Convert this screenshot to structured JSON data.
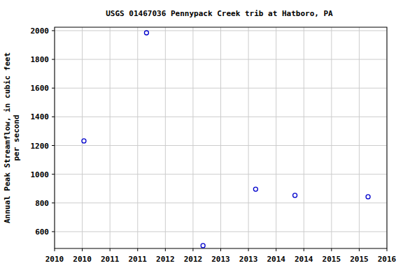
{
  "chart_data": {
    "type": "scatter",
    "title": "USGS 01467036 Pennypack Creek trib at Hatboro, PA",
    "ylabel": [
      "Annual Peak Streamflow, in cubic feet",
      "per second"
    ],
    "x": [
      2010.53,
      2011.66,
      2012.68,
      2013.63,
      2014.34,
      2015.66
    ],
    "values": [
      1232,
      1985,
      503,
      896,
      853,
      843
    ],
    "color": "#0000cc",
    "marker": "open-circle",
    "xlim": [
      2010.0,
      2016.0
    ],
    "xticks": [
      {
        "value": 2010.0,
        "label": "2010"
      },
      {
        "value": 2010.5,
        "label": "2010"
      },
      {
        "value": 2011.0,
        "label": "2011"
      },
      {
        "value": 2011.5,
        "label": "2011"
      },
      {
        "value": 2012.0,
        "label": "2012"
      },
      {
        "value": 2012.5,
        "label": "2012"
      },
      {
        "value": 2013.0,
        "label": "2013"
      },
      {
        "value": 2013.5,
        "label": "2013"
      },
      {
        "value": 2014.0,
        "label": "2014"
      },
      {
        "value": 2014.5,
        "label": "2014"
      },
      {
        "value": 2015.0,
        "label": "2015"
      },
      {
        "value": 2015.5,
        "label": "2015"
      },
      {
        "value": 2016.0,
        "label": "2016"
      }
    ],
    "ylim": [
      483,
      2024
    ],
    "yticks": [
      600,
      800,
      1000,
      1200,
      1400,
      1600,
      1800,
      2000
    ],
    "grid": true
  }
}
